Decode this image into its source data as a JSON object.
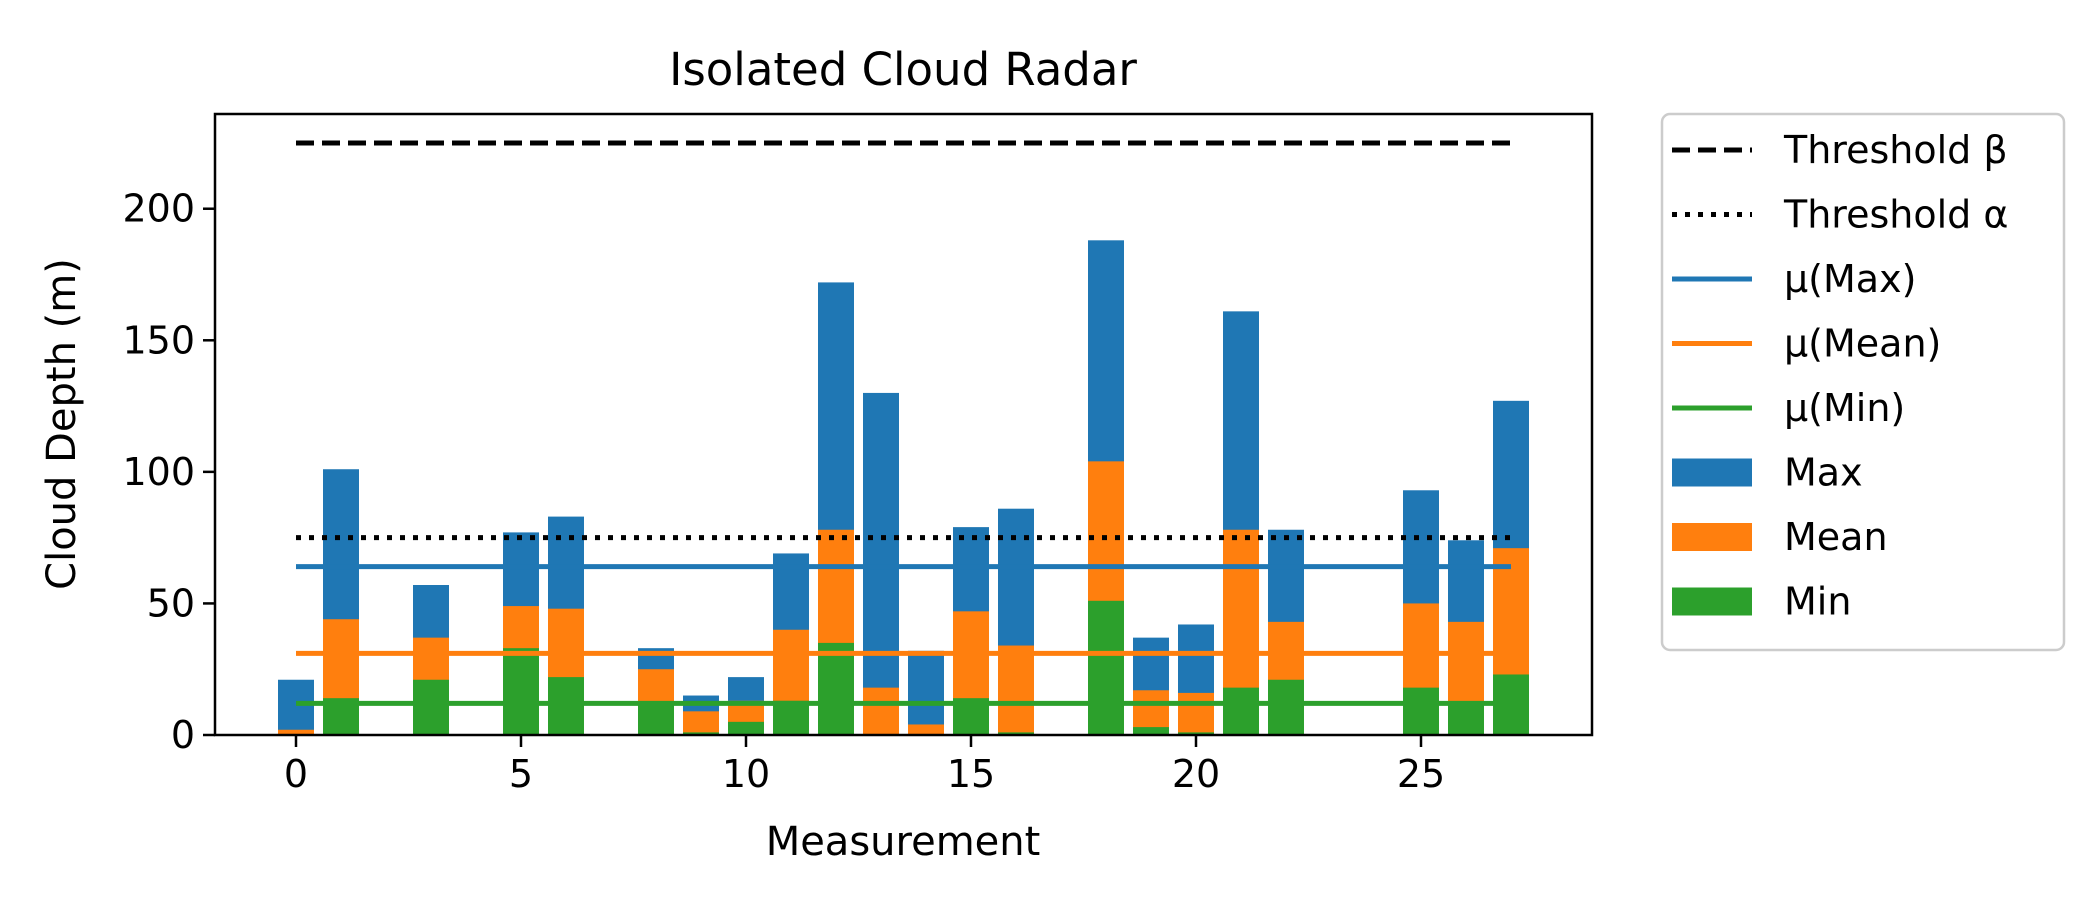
{
  "chart_data": {
    "type": "bar",
    "stacked_overlay": true,
    "title": "Isolated Cloud Radar",
    "xlabel": "Measurement",
    "ylabel": "Cloud Depth (m)",
    "xlim": [
      -1.8,
      28.8
    ],
    "ylim": [
      0,
      236
    ],
    "x_ticks": [
      0,
      5,
      10,
      15,
      20,
      25
    ],
    "y_ticks": [
      0,
      50,
      100,
      150,
      200
    ],
    "legend_position": "outside-right",
    "colors": {
      "max": "#1f77b4",
      "mean": "#ff7f0e",
      "min": "#2ca02c",
      "threshold": "#000000"
    },
    "x": [
      0,
      1,
      3,
      5,
      6,
      8,
      9,
      10,
      11,
      12,
      13,
      14,
      15,
      16,
      18,
      19,
      20,
      21,
      22,
      25,
      26,
      27
    ],
    "series": [
      {
        "name": "Max",
        "values": [
          21,
          101,
          57,
          77,
          83,
          33,
          15,
          22,
          69,
          172,
          130,
          32,
          79,
          86,
          188,
          37,
          42,
          161,
          78,
          93,
          74,
          127
        ]
      },
      {
        "name": "Mean",
        "values": [
          2,
          44,
          37,
          49,
          48,
          25,
          9,
          13,
          40,
          78,
          18,
          4,
          47,
          34,
          104,
          17,
          16,
          78,
          43,
          50,
          43,
          71
        ]
      },
      {
        "name": "Min",
        "values": [
          0,
          14,
          21,
          33,
          22,
          12,
          1,
          5,
          13,
          35,
          0,
          0,
          14,
          1,
          51,
          3,
          1,
          18,
          21,
          18,
          12,
          23
        ]
      }
    ],
    "reference_lines": [
      {
        "label": "Threshold β",
        "style": "dashed",
        "color": "#000000",
        "y": 225,
        "x_range": [
          0,
          27
        ]
      },
      {
        "label": "Threshold α",
        "style": "dotted",
        "color": "#000000",
        "y": 75,
        "x_range": [
          0,
          27
        ]
      },
      {
        "label": "μ(Max)",
        "style": "solid",
        "color": "#1f77b4",
        "y": 64,
        "x_range": [
          0,
          27
        ]
      },
      {
        "label": "μ(Mean)",
        "style": "solid",
        "color": "#ff7f0e",
        "y": 31,
        "x_range": [
          0,
          27
        ]
      },
      {
        "label": "μ(Min)",
        "style": "solid",
        "color": "#2ca02c",
        "y": 12,
        "x_range": [
          0,
          27
        ]
      }
    ],
    "legend": [
      {
        "label": "Threshold β",
        "kind": "dashed",
        "color": "#000000"
      },
      {
        "label": "Threshold α",
        "kind": "dotted",
        "color": "#000000"
      },
      {
        "label": "μ(Max)",
        "kind": "line",
        "color": "#1f77b4"
      },
      {
        "label": "μ(Mean)",
        "kind": "line",
        "color": "#ff7f0e"
      },
      {
        "label": "μ(Min)",
        "kind": "line",
        "color": "#2ca02c"
      },
      {
        "label": "Max",
        "kind": "patch",
        "color": "#1f77b4"
      },
      {
        "label": "Mean",
        "kind": "patch",
        "color": "#ff7f0e"
      },
      {
        "label": "Min",
        "kind": "patch",
        "color": "#2ca02c"
      }
    ]
  }
}
